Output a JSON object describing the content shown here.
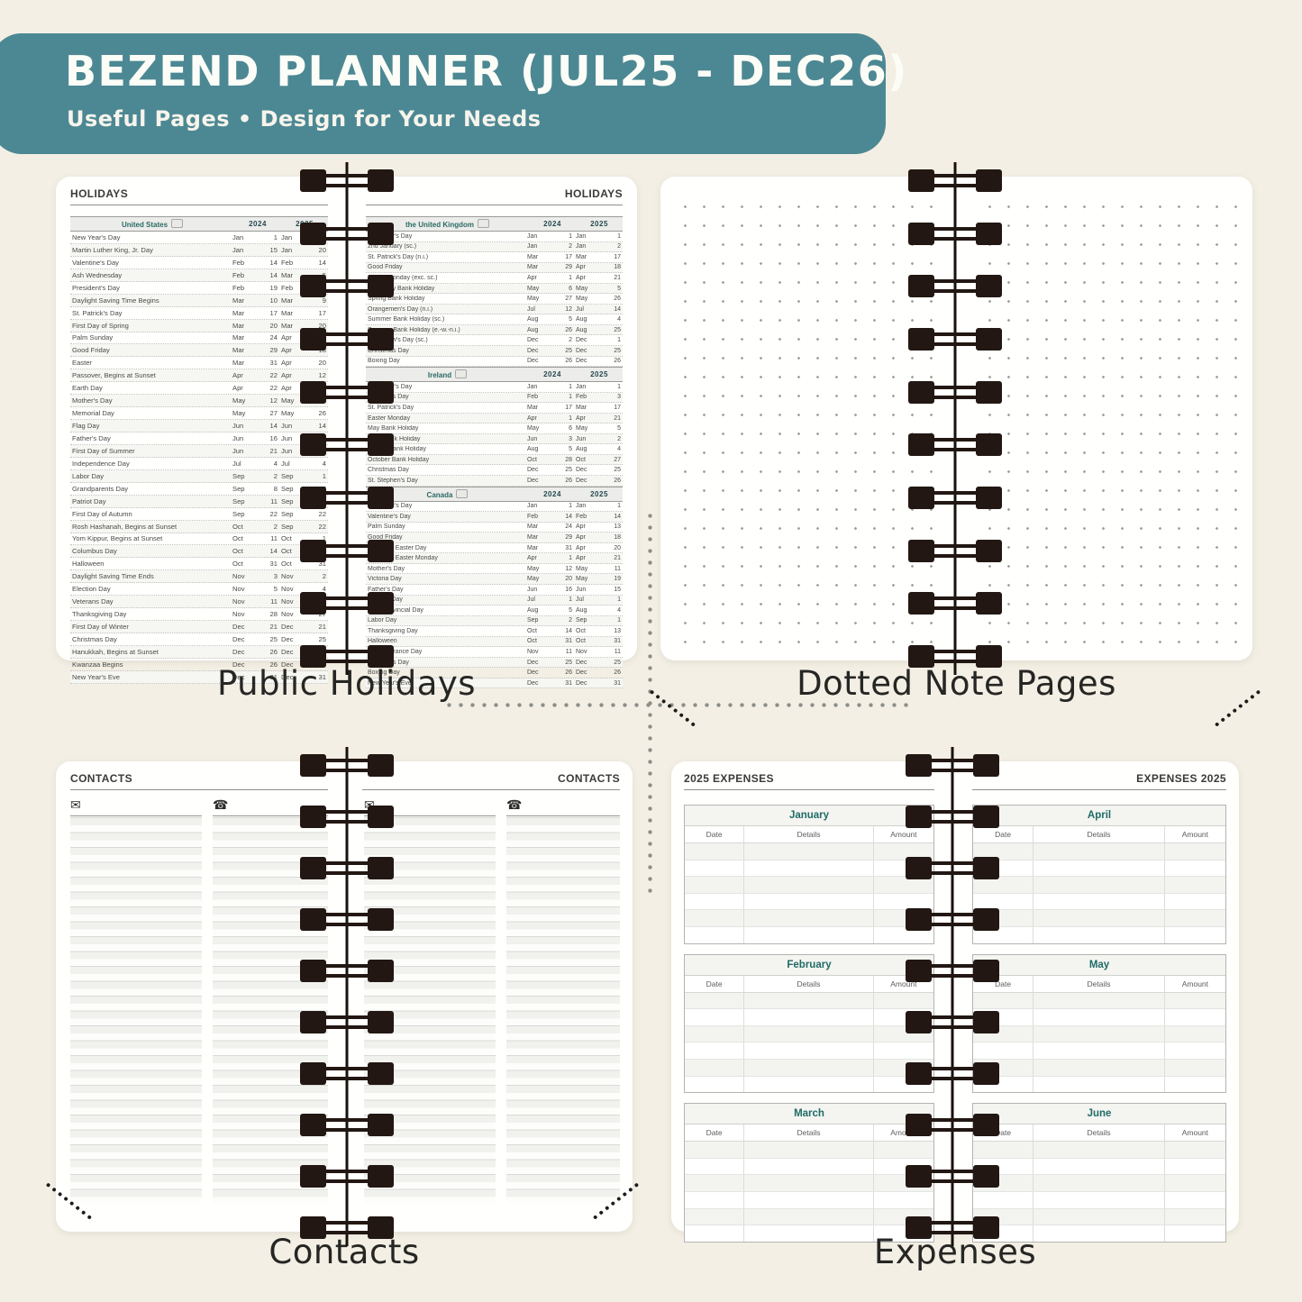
{
  "colors": {
    "header_band": "#4c8893",
    "background": "#f3efe4",
    "accent_teal": "#1f6b66",
    "spiral": "#221712"
  },
  "header": {
    "title": "BEZEND PLANNER (JUL25 - DEC26)",
    "subtitle": "Useful Pages  •  Design for Your Needs"
  },
  "holidays": {
    "page_title": "HOLIDAYS",
    "caption": "Public Holidays",
    "years": [
      "2024",
      "2025"
    ],
    "tables": [
      {
        "country": "United States",
        "page": "left",
        "rows": [
          [
            "New Year's Day",
            "Jan",
            "1",
            "Jan",
            "1"
          ],
          [
            "Martin Luther King, Jr. Day",
            "Jan",
            "15",
            "Jan",
            "20"
          ],
          [
            "Valentine's Day",
            "Feb",
            "14",
            "Feb",
            "14"
          ],
          [
            "Ash Wednesday",
            "Feb",
            "14",
            "Mar",
            "5"
          ],
          [
            "President's Day",
            "Feb",
            "19",
            "Feb",
            "17"
          ],
          [
            "Daylight Saving Time Begins",
            "Mar",
            "10",
            "Mar",
            "9"
          ],
          [
            "St. Patrick's Day",
            "Mar",
            "17",
            "Mar",
            "17"
          ],
          [
            "First Day of Spring",
            "Mar",
            "20",
            "Mar",
            "20"
          ],
          [
            "Palm Sunday",
            "Mar",
            "24",
            "Apr",
            "13"
          ],
          [
            "Good Friday",
            "Mar",
            "29",
            "Apr",
            "18"
          ],
          [
            "Easter",
            "Mar",
            "31",
            "Apr",
            "20"
          ],
          [
            "Passover, Begins at Sunset",
            "Apr",
            "22",
            "Apr",
            "12"
          ],
          [
            "Earth Day",
            "Apr",
            "22",
            "Apr",
            "22"
          ],
          [
            "Mother's Day",
            "May",
            "12",
            "May",
            "11"
          ],
          [
            "Memorial Day",
            "May",
            "27",
            "May",
            "26"
          ],
          [
            "Flag Day",
            "Jun",
            "14",
            "Jun",
            "14"
          ],
          [
            "Father's Day",
            "Jun",
            "16",
            "Jun",
            "15"
          ],
          [
            "First Day of Summer",
            "Jun",
            "21",
            "Jun",
            "21"
          ],
          [
            "Independence Day",
            "Jul",
            "4",
            "Jul",
            "4"
          ],
          [
            "Labor Day",
            "Sep",
            "2",
            "Sep",
            "1"
          ],
          [
            "Grandparents Day",
            "Sep",
            "8",
            "Sep",
            "7"
          ],
          [
            "Patriot Day",
            "Sep",
            "11",
            "Sep",
            "11"
          ],
          [
            "First Day of Autumn",
            "Sep",
            "22",
            "Sep",
            "22"
          ],
          [
            "Rosh Hashanah, Begins at Sunset",
            "Oct",
            "2",
            "Sep",
            "22"
          ],
          [
            "Yom Kippur, Begins at Sunset",
            "Oct",
            "11",
            "Oct",
            "1"
          ],
          [
            "Columbus Day",
            "Oct",
            "14",
            "Oct",
            "13"
          ],
          [
            "Halloween",
            "Oct",
            "31",
            "Oct",
            "31"
          ],
          [
            "Daylight Saving Time Ends",
            "Nov",
            "3",
            "Nov",
            "2"
          ],
          [
            "Election Day",
            "Nov",
            "5",
            "Nov",
            "4"
          ],
          [
            "Veterans Day",
            "Nov",
            "11",
            "Nov",
            "11"
          ],
          [
            "Thanksgiving Day",
            "Nov",
            "28",
            "Nov",
            "27"
          ],
          [
            "First Day of Winter",
            "Dec",
            "21",
            "Dec",
            "21"
          ],
          [
            "Christmas Day",
            "Dec",
            "25",
            "Dec",
            "25"
          ],
          [
            "Hanukkah, Begins at Sunset",
            "Dec",
            "26",
            "Dec",
            "14"
          ],
          [
            "Kwanzaa Begins",
            "Dec",
            "26",
            "Dec",
            "26"
          ],
          [
            "New Year's Eve",
            "Dec",
            "31",
            "Dec",
            "31"
          ]
        ]
      },
      {
        "country": "the United Kingdom",
        "page": "right",
        "rows": [
          [
            "New Year's Day",
            "Jan",
            "1",
            "Jan",
            "1"
          ],
          [
            "2nd January (sc.)",
            "Jan",
            "2",
            "Jan",
            "2"
          ],
          [
            "St. Patrick's Day (n.i.)",
            "Mar",
            "17",
            "Mar",
            "17"
          ],
          [
            "Good Friday",
            "Mar",
            "29",
            "Apr",
            "18"
          ],
          [
            "Easter Monday (exc. sc.)",
            "Apr",
            "1",
            "Apr",
            "21"
          ],
          [
            "Early May Bank Holiday",
            "May",
            "6",
            "May",
            "5"
          ],
          [
            "Spring Bank Holiday",
            "May",
            "27",
            "May",
            "26"
          ],
          [
            "Orangemen's Day (n.i.)",
            "Jul",
            "12",
            "Jul",
            "14"
          ],
          [
            "Summer Bank Holiday (sc.)",
            "Aug",
            "5",
            "Aug",
            "4"
          ],
          [
            "Summer Bank Holiday (e.-w.-n.i.)",
            "Aug",
            "26",
            "Aug",
            "25"
          ],
          [
            "St Andrew's Day (sc.)",
            "Dec",
            "2",
            "Dec",
            "1"
          ],
          [
            "Christmas Day",
            "Dec",
            "25",
            "Dec",
            "25"
          ],
          [
            "Boxing Day",
            "Dec",
            "26",
            "Dec",
            "26"
          ]
        ]
      },
      {
        "country": "Ireland",
        "page": "right",
        "rows": [
          [
            "New Year's Day",
            "Jan",
            "1",
            "Jan",
            "1"
          ],
          [
            "St Brigid's Day",
            "Feb",
            "1",
            "Feb",
            "3"
          ],
          [
            "St. Patrick's Day",
            "Mar",
            "17",
            "Mar",
            "17"
          ],
          [
            "Easter Monday",
            "Apr",
            "1",
            "Apr",
            "21"
          ],
          [
            "May Bank Holiday",
            "May",
            "6",
            "May",
            "5"
          ],
          [
            "June Bank Holiday",
            "Jun",
            "3",
            "Jun",
            "2"
          ],
          [
            "August Bank Holiday",
            "Aug",
            "5",
            "Aug",
            "4"
          ],
          [
            "October Bank Holiday",
            "Oct",
            "28",
            "Oct",
            "27"
          ],
          [
            "Christmas Day",
            "Dec",
            "25",
            "Dec",
            "25"
          ],
          [
            "St. Stephen's Day",
            "Dec",
            "26",
            "Dec",
            "26"
          ]
        ]
      },
      {
        "country": "Canada",
        "page": "right",
        "rows": [
          [
            "New Year's Day",
            "Jan",
            "1",
            "Jan",
            "1"
          ],
          [
            "Valentine's Day",
            "Feb",
            "14",
            "Feb",
            "14"
          ],
          [
            "Palm Sunday",
            "Mar",
            "24",
            "Apr",
            "13"
          ],
          [
            "Good Friday",
            "Mar",
            "29",
            "Apr",
            "18"
          ],
          [
            "Orthodox Easter Day",
            "Mar",
            "31",
            "Apr",
            "20"
          ],
          [
            "Orthodox Easter Monday",
            "Apr",
            "1",
            "Apr",
            "21"
          ],
          [
            "Mother's Day",
            "May",
            "12",
            "May",
            "11"
          ],
          [
            "Victoria Day",
            "May",
            "20",
            "May",
            "19"
          ],
          [
            "Father's Day",
            "Jun",
            "16",
            "Jun",
            "15"
          ],
          [
            "Canada Day",
            "Jul",
            "1",
            "Jul",
            "1"
          ],
          [
            "Civic/Provincial Day",
            "Aug",
            "5",
            "Aug",
            "4"
          ],
          [
            "Labor Day",
            "Sep",
            "2",
            "Sep",
            "1"
          ],
          [
            "Thanksgiving Day",
            "Oct",
            "14",
            "Oct",
            "13"
          ],
          [
            "Halloween",
            "Oct",
            "31",
            "Oct",
            "31"
          ],
          [
            "Remembrance Day",
            "Nov",
            "11",
            "Nov",
            "11"
          ],
          [
            "Christmas Day",
            "Dec",
            "25",
            "Dec",
            "25"
          ],
          [
            "Boxing Day",
            "Dec",
            "26",
            "Dec",
            "26"
          ],
          [
            "New Year's Eve",
            "Dec",
            "31",
            "Dec",
            "31"
          ]
        ]
      }
    ]
  },
  "notes": {
    "caption": "Dotted Note Pages"
  },
  "contacts": {
    "page_title": "CONTACTS",
    "caption": "Contacts",
    "email_icon": "✉",
    "phone_icon": "☎"
  },
  "expenses": {
    "page_title_left": "2025 EXPENSES",
    "page_title_right": "EXPENSES 2025",
    "caption": "Expenses",
    "columns": [
      "Date",
      "Details",
      "Amount"
    ],
    "row_count": 6,
    "pages": {
      "left": [
        "January",
        "February",
        "March"
      ],
      "right": [
        "April",
        "May",
        "June"
      ]
    }
  }
}
